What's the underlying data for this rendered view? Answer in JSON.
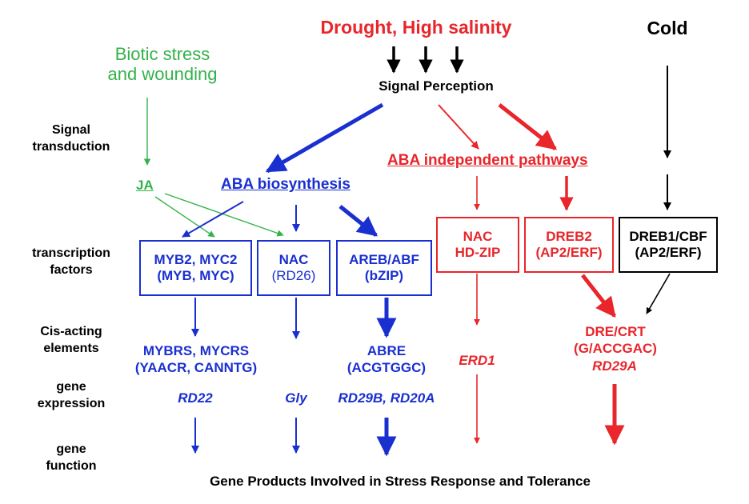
{
  "stimuli": {
    "drought": "Drought, High salinity",
    "cold": "Cold",
    "biotic_line1": "Biotic stress",
    "biotic_line2": "and wounding"
  },
  "signal_perception": "Signal Perception",
  "row_labels": {
    "signal_line1": "Signal",
    "signal_line2": "transduction",
    "tf_line1": "transcription",
    "tf_line2": "factors",
    "cis_line1": "Cis-acting",
    "cis_line2": "elements",
    "expr_line1": "gene",
    "expr_line2": "expression",
    "func_line1": "gene",
    "func_line2": "function"
  },
  "pathways": {
    "ja": "JA",
    "aba_biosynthesis": "ABA biosynthesis",
    "aba_independent": "ABA independent pathways"
  },
  "tf_boxes": {
    "myb_line1": "MYB2, MYC2",
    "myb_line2": "(MYB, MYC)",
    "nac_line1": "NAC",
    "nac_line2": "(RD26)",
    "areb_line1": "AREB/ABF",
    "areb_line2": "(bZIP)",
    "nac_hd_line1": "NAC",
    "nac_hd_line2": "HD-ZIP",
    "dreb2_line1": "DREB2",
    "dreb2_line2": "(AP2/ERF)",
    "dreb1_line1": "DREB1/CBF",
    "dreb1_line2": "(AP2/ERF)"
  },
  "cis_elements": {
    "mybrs_line1": "MYBRS, MYCRS",
    "mybrs_line2": "(YAACR, CANNTG)",
    "abre_line1": "ABRE",
    "abre_line2": "(ACGTGGC)",
    "dre_line1": "DRE/CRT",
    "dre_line2": "(G/ACCGAC)"
  },
  "genes": {
    "rd22": "RD22",
    "gly": "Gly",
    "rd29b": "RD29B, RD20A",
    "erd1": "ERD1",
    "rd29a": "RD29A"
  },
  "footer": "Gene Products Involved in Stress Response and Tolerance",
  "colors": {
    "red": "#e8262b",
    "blue": "#1a2fd0",
    "green": "#33b24a",
    "black": "#000000"
  }
}
